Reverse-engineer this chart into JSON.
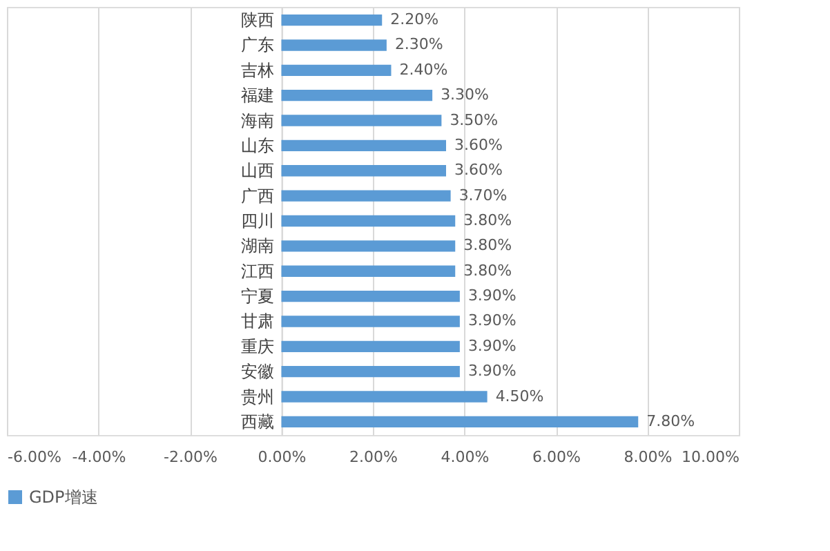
{
  "chart_data": {
    "type": "bar",
    "orientation": "horizontal",
    "categories": [
      "陕西",
      "广东",
      "吉林",
      "福建",
      "海南",
      "山东",
      "山西",
      "广西",
      "四川",
      "湖南",
      "江西",
      "宁夏",
      "甘肃",
      "重庆",
      "安徽",
      "贵州",
      "西藏"
    ],
    "series": [
      {
        "name": "GDP增速",
        "color": "#5b9bd5",
        "values": [
          2.2,
          2.3,
          2.4,
          3.3,
          3.5,
          3.6,
          3.6,
          3.7,
          3.8,
          3.8,
          3.8,
          3.9,
          3.9,
          3.9,
          3.9,
          4.5,
          7.8
        ],
        "value_labels": [
          "2.20%",
          "2.30%",
          "2.40%",
          "3.30%",
          "3.50%",
          "3.60%",
          "3.60%",
          "3.70%",
          "3.80%",
          "3.80%",
          "3.80%",
          "3.90%",
          "3.90%",
          "3.90%",
          "3.90%",
          "4.50%",
          "7.80%"
        ]
      }
    ],
    "xlim": [
      -6,
      10
    ],
    "xticks": [
      {
        "value": -6,
        "label": "-6.00%"
      },
      {
        "value": -4,
        "label": "-4.00%"
      },
      {
        "value": -2,
        "label": "-2.00%"
      },
      {
        "value": 0,
        "label": "0.00%"
      },
      {
        "value": 2,
        "label": "2.00%"
      },
      {
        "value": 4,
        "label": "4.00%"
      },
      {
        "value": 6,
        "label": "6.00%"
      },
      {
        "value": 8,
        "label": "8.00%"
      },
      {
        "value": 10,
        "label": "10.00%"
      }
    ],
    "grid": "x",
    "legend": "bottom"
  }
}
